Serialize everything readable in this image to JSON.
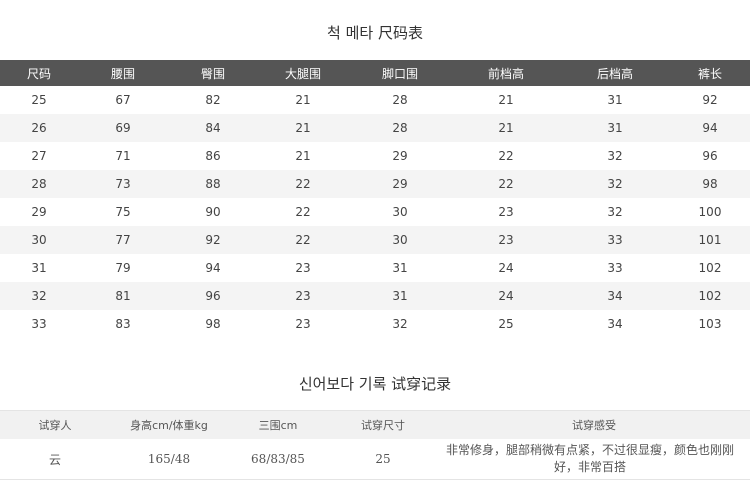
{
  "size_chart": {
    "title": "척 메타 尺码表",
    "headers": [
      "尺码",
      "腰围",
      "臀围",
      "大腿围",
      "脚口围",
      "前档高",
      "后档高",
      "裤长"
    ],
    "rows": [
      [
        "25",
        "67",
        "82",
        "21",
        "28",
        "21",
        "31",
        "92"
      ],
      [
        "26",
        "69",
        "84",
        "21",
        "28",
        "21",
        "31",
        "94"
      ],
      [
        "27",
        "71",
        "86",
        "21",
        "29",
        "22",
        "32",
        "96"
      ],
      [
        "28",
        "73",
        "88",
        "22",
        "29",
        "22",
        "32",
        "98"
      ],
      [
        "29",
        "75",
        "90",
        "22",
        "30",
        "23",
        "32",
        "100"
      ],
      [
        "30",
        "77",
        "92",
        "22",
        "30",
        "23",
        "33",
        "101"
      ],
      [
        "31",
        "79",
        "94",
        "23",
        "31",
        "24",
        "33",
        "102"
      ],
      [
        "32",
        "81",
        "96",
        "23",
        "31",
        "24",
        "34",
        "102"
      ],
      [
        "33",
        "83",
        "98",
        "23",
        "32",
        "25",
        "34",
        "103"
      ]
    ]
  },
  "try_on": {
    "title": "신어보다 기록 试穿记录",
    "headers": [
      "试穿人",
      "身高cm/体重kg",
      "三围cm",
      "试穿尺寸",
      "试穿感受"
    ],
    "rows": [
      [
        "云",
        "165/48",
        "68/83/85",
        "25",
        "非常修身，腿部稍微有点紧，不过很显瘦，颜色也刚刚好，非常百搭"
      ]
    ]
  }
}
